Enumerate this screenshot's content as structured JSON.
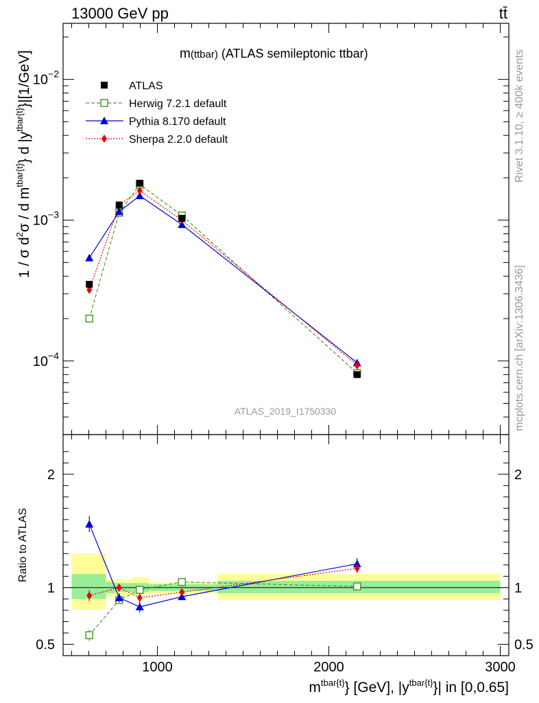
{
  "header": {
    "left": "13000 GeV pp",
    "right": "tt̄"
  },
  "side_labels": {
    "rivet": "Rivet 3.1.10, ≥ 400k events",
    "mcplots": "mcplots.cern.ch [arXiv:1306.3436]"
  },
  "watermark": "ATLAS_2019_I1750330",
  "chart_data": [
    {
      "type": "line",
      "title": "m(ttbar) (ATLAS semileptonic ttbar)",
      "title_parts": {
        "main": "m",
        "paren": "(ttbar)",
        "rest": " (ATLAS semileptonic ttbar)"
      },
      "ylabel": "1 / σ d²σ / d m^{tbar{t}} d |y^{tbar{t}}|[1/GeV]",
      "ylabel_parts": {
        "p1": "1 / σ d",
        "sup1": "2",
        "p2": "σ / d m",
        "sup2": "tbar{t}",
        "p3": "} d |y",
        "sup3": "tbar{t}",
        "p4": "}|[1/GeV]"
      },
      "yscale": "log",
      "ylim": [
        3e-05,
        0.025
      ],
      "xlim": [
        450,
        3050
      ],
      "y_tick_labels": [
        {
          "value": 0.01,
          "mant": "10",
          "exp": "−2"
        },
        {
          "value": 0.001,
          "mant": "10",
          "exp": "−3"
        },
        {
          "value": 0.0001,
          "mant": "10",
          "exp": "−4"
        }
      ],
      "legend_position": "top-left",
      "series": [
        {
          "name": "ATLAS",
          "color": "#000000",
          "marker": "filled-square",
          "x": [
            603,
            777,
            897,
            1143,
            2165
          ],
          "y": [
            0.00035,
            0.00128,
            0.00183,
            0.00103,
            8e-05
          ],
          "yerr": [
            1e-05,
            3e-05,
            4e-05,
            2e-05,
            2e-06
          ]
        },
        {
          "name": "Herwig 7.2.1 default",
          "color": "#4c9a2a",
          "marker": "open-square",
          "line": "dashed",
          "x": [
            603,
            777,
            897,
            1143,
            2165
          ],
          "y": [
            0.0002,
            0.00113,
            0.00179,
            0.00108,
            8.2e-05
          ],
          "yerr": [
            1e-05,
            3e-05,
            4e-05,
            2e-05,
            2e-06
          ]
        },
        {
          "name": "Pythia 8.170 default",
          "color": "#0000dd",
          "marker": "filled-triangle",
          "line": "solid",
          "x": [
            603,
            777,
            897,
            1143,
            2165
          ],
          "y": [
            0.00054,
            0.00115,
            0.00149,
            0.00093,
            9.7e-05
          ],
          "yerr": [
            3e-05,
            3e-05,
            5e-05,
            2e-05,
            3e-06
          ]
        },
        {
          "name": "Sherpa 2.2.0 default",
          "color": "#ee0000",
          "marker": "filled-diamond",
          "line": "dotted",
          "x": [
            603,
            777,
            897,
            1143,
            2165
          ],
          "y": [
            0.00032,
            0.00128,
            0.00162,
            0.001,
            9.3e-05
          ],
          "yerr": [
            2e-05,
            3e-05,
            5e-05,
            2e-05,
            3e-06
          ]
        }
      ]
    },
    {
      "type": "line",
      "ylabel": "Ratio to ATLAS",
      "xlabel": "m^{tbar{t}} [GeV], |y^{tbar{t}}| in [0,0.65]",
      "xlabel_parts": {
        "p1": "m",
        "sup1": "tbar{t}",
        "p2": "} [GeV], |y",
        "sup2": "tbar{t}",
        "p3": "}| in [0,0.65]"
      },
      "ylim": [
        0.4,
        2.35
      ],
      "xlim": [
        450,
        3050
      ],
      "y_ticks": [
        0.5,
        1,
        2
      ],
      "y_tick_labels": [
        "0.5",
        "1",
        "2"
      ],
      "x_ticks": [
        1000,
        2000,
        3000
      ],
      "x_tick_labels": [
        "1000",
        "2000",
        "3000"
      ],
      "bands": [
        {
          "x": [
            500,
            700
          ],
          "inner": [
            0.9,
            1.12
          ],
          "outer": [
            0.81,
            1.3
          ]
        },
        {
          "x": [
            700,
            750
          ],
          "inner": [
            0.95,
            1.05
          ],
          "outer": [
            0.92,
            1.08
          ]
        },
        {
          "x": [
            750,
            850
          ],
          "inner": [
            0.96,
            1.04
          ],
          "outer": [
            0.93,
            1.07
          ]
        },
        {
          "x": [
            850,
            950
          ],
          "inner": [
            0.96,
            1.04
          ],
          "outer": [
            0.93,
            1.09
          ]
        },
        {
          "x": [
            950,
            1350
          ],
          "inner": [
            0.97,
            1.03
          ],
          "outer": [
            0.95,
            1.05
          ]
        },
        {
          "x": [
            1350,
            3000
          ],
          "inner": [
            0.95,
            1.06
          ],
          "outer": [
            0.89,
            1.12
          ]
        }
      ],
      "series": [
        {
          "name": "Herwig 7.2.1 default",
          "color": "#4c9a2a",
          "marker": "open-square",
          "line": "dashed",
          "x": [
            603,
            777,
            897,
            1143,
            2165
          ],
          "y": [
            0.58,
            0.89,
            0.98,
            1.05,
            1.01
          ],
          "yerr": [
            0.05,
            0.03,
            0.03,
            0.02,
            0.03
          ]
        },
        {
          "name": "Pythia 8.170 default",
          "color": "#0000dd",
          "marker": "filled-triangle",
          "line": "solid",
          "x": [
            603,
            777,
            897,
            1143,
            2165
          ],
          "y": [
            1.56,
            0.91,
            0.83,
            0.92,
            1.21
          ],
          "yerr": [
            0.07,
            0.04,
            0.05,
            0.03,
            0.05
          ]
        },
        {
          "name": "Sherpa 2.2.0 default",
          "color": "#ee0000",
          "marker": "filled-diamond",
          "line": "dotted",
          "x": [
            603,
            777,
            897,
            1143,
            2165
          ],
          "y": [
            0.93,
            1.0,
            0.91,
            0.96,
            1.17
          ],
          "yerr": [
            0.05,
            0.03,
            0.04,
            0.03,
            0.04
          ]
        }
      ]
    }
  ]
}
